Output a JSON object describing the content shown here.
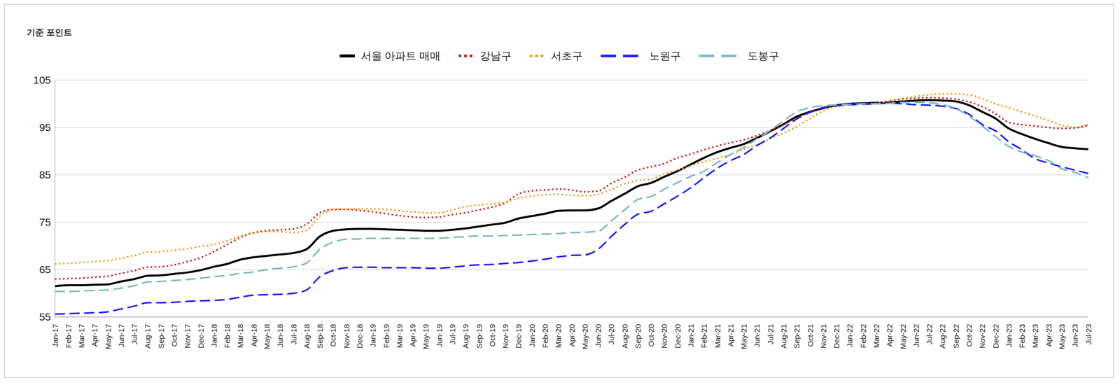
{
  "chart_data": {
    "type": "line",
    "title": "기준 포인트",
    "legend": "top",
    "grid": true,
    "ylim": [
      55,
      105
    ],
    "yticks": [
      55,
      65,
      75,
      85,
      95,
      105
    ],
    "categories": [
      "Jan-17",
      "Feb-17",
      "Mar-17",
      "Apr-17",
      "May-17",
      "Jun-17",
      "Jul-17",
      "Aug-17",
      "Sep-17",
      "Oct-17",
      "Nov-17",
      "Dec-17",
      "Jan-18",
      "Feb-18",
      "Mar-18",
      "Apr-18",
      "May-18",
      "Jun-18",
      "Jul-18",
      "Aug-18",
      "Sep-18",
      "Oct-18",
      "Nov-18",
      "Dec-18",
      "Jan-19",
      "Feb-19",
      "Mar-19",
      "Apr-19",
      "May-19",
      "Jun-19",
      "Jul-19",
      "Aug-19",
      "Sep-19",
      "Oct-19",
      "Nov-19",
      "Dec-19",
      "Jan-20",
      "Feb-20",
      "Mar-20",
      "Apr-20",
      "May-20",
      "Jun-20",
      "Jul-20",
      "Aug-20",
      "Sep-20",
      "Oct-20",
      "Nov-20",
      "Dec-20",
      "Jan-21",
      "Feb-21",
      "Mar-21",
      "Apr-21",
      "May-21",
      "Jun-21",
      "Jul-21",
      "Aug-21",
      "Sep-21",
      "Oct-21",
      "Nov-21",
      "Dec-21",
      "Jan-22",
      "Feb-22",
      "Mar-22",
      "Apr-22",
      "May-22",
      "Jun-22",
      "Jul-22",
      "Aug-22",
      "Sep-22",
      "Oct-22",
      "Nov-22",
      "Dec-22",
      "Jan-23",
      "Feb-23",
      "Mar-23",
      "Apr-23",
      "May-23",
      "Jun-23",
      "Jul-23"
    ],
    "series": [
      {
        "name": "서울 아파트 매매",
        "color": "#000000",
        "line_style": "solid",
        "values": [
          61.5,
          61.7,
          61.7,
          61.8,
          61.9,
          62.5,
          63.0,
          63.7,
          63.8,
          64.1,
          64.4,
          64.9,
          65.6,
          66.2,
          67.1,
          67.6,
          67.9,
          68.2,
          68.5,
          69.3,
          72.0,
          73.2,
          73.5,
          73.6,
          73.6,
          73.5,
          73.4,
          73.3,
          73.2,
          73.2,
          73.4,
          73.7,
          74.1,
          74.5,
          74.9,
          75.8,
          76.3,
          76.8,
          77.4,
          77.5,
          77.5,
          77.9,
          79.5,
          81.0,
          82.6,
          83.3,
          84.6,
          85.8,
          87.2,
          88.6,
          89.8,
          90.7,
          91.5,
          92.8,
          94.2,
          95.7,
          97.3,
          98.3,
          99.1,
          99.7,
          100.0,
          100.1,
          100.2,
          100.3,
          100.5,
          100.7,
          100.8,
          100.7,
          100.5,
          99.7,
          98.3,
          96.9,
          94.8,
          93.6,
          92.6,
          91.7,
          90.9,
          90.6,
          90.4
        ]
      },
      {
        "name": "강남구",
        "color": "#cc0000",
        "line_style": "dotted",
        "values": [
          63.0,
          63.1,
          63.2,
          63.4,
          63.6,
          64.2,
          64.8,
          65.5,
          65.6,
          66.0,
          66.7,
          67.5,
          68.8,
          70.3,
          71.8,
          72.8,
          73.2,
          73.4,
          73.6,
          74.6,
          77.0,
          77.7,
          77.7,
          77.5,
          77.2,
          76.8,
          76.4,
          76.1,
          76.0,
          76.1,
          76.6,
          77.0,
          77.6,
          78.2,
          79.1,
          81.0,
          81.6,
          81.8,
          82.0,
          81.8,
          81.4,
          81.6,
          83.2,
          84.5,
          86.0,
          86.7,
          87.4,
          88.6,
          89.4,
          90.3,
          91.1,
          91.8,
          92.4,
          93.3,
          94.4,
          95.6,
          97.0,
          98.2,
          99.2,
          99.7,
          99.9,
          100.0,
          100.1,
          100.6,
          101.0,
          101.2,
          101.3,
          101.2,
          101.0,
          100.4,
          99.4,
          97.9,
          96.1,
          95.6,
          95.3,
          95.0,
          94.8,
          94.9,
          95.5
        ]
      },
      {
        "name": "서초구",
        "color": "#e69b00",
        "line_style": "dotted",
        "values": [
          66.2,
          66.3,
          66.5,
          66.7,
          66.9,
          67.4,
          68.0,
          68.7,
          68.8,
          69.1,
          69.4,
          69.9,
          70.3,
          71.1,
          72.1,
          72.7,
          73.0,
          73.0,
          72.8,
          73.3,
          76.3,
          77.6,
          77.8,
          77.8,
          77.8,
          77.7,
          77.4,
          77.2,
          77.0,
          77.0,
          77.6,
          78.3,
          78.6,
          78.9,
          79.2,
          80.1,
          80.5,
          80.8,
          80.9,
          80.7,
          80.6,
          80.9,
          81.9,
          83.1,
          83.8,
          84.1,
          85.2,
          86.0,
          86.9,
          87.8,
          88.5,
          89.3,
          90.4,
          91.4,
          92.6,
          93.8,
          95.2,
          96.9,
          98.5,
          99.4,
          99.8,
          100.0,
          100.1,
          100.6,
          101.1,
          101.6,
          101.9,
          102.1,
          102.1,
          101.9,
          101.1,
          100.0,
          99.2,
          98.3,
          97.4,
          96.5,
          95.5,
          95.0,
          95.6
        ]
      },
      {
        "name": "노원구",
        "color": "#1a1aff",
        "line_style": "dashed",
        "values": [
          55.6,
          55.7,
          55.8,
          55.9,
          56.1,
          56.7,
          57.3,
          58.0,
          58.0,
          58.1,
          58.3,
          58.4,
          58.5,
          58.7,
          59.2,
          59.6,
          59.7,
          59.8,
          60.0,
          60.7,
          63.5,
          64.8,
          65.4,
          65.5,
          65.5,
          65.4,
          65.4,
          65.4,
          65.3,
          65.3,
          65.5,
          65.8,
          66.0,
          66.1,
          66.3,
          66.5,
          66.8,
          67.2,
          67.7,
          68.0,
          68.1,
          69.3,
          72.0,
          74.5,
          76.7,
          77.3,
          78.9,
          80.5,
          82.3,
          84.4,
          86.4,
          88.0,
          89.3,
          91.2,
          92.8,
          94.8,
          96.8,
          98.2,
          99.2,
          99.6,
          99.8,
          99.9,
          100.0,
          100.1,
          100.0,
          99.8,
          99.7,
          99.5,
          99.0,
          97.8,
          95.6,
          94.3,
          92.0,
          90.3,
          88.4,
          87.5,
          86.7,
          86.0,
          85.3
        ]
      },
      {
        "name": "도봉구",
        "color": "#7bb8c4",
        "line_style": "dashed",
        "values": [
          60.4,
          60.4,
          60.5,
          60.6,
          60.7,
          61.1,
          61.6,
          62.4,
          62.5,
          62.7,
          62.9,
          63.2,
          63.5,
          63.8,
          64.2,
          64.5,
          65.0,
          65.3,
          65.6,
          66.4,
          69.3,
          70.8,
          71.4,
          71.5,
          71.6,
          71.6,
          71.6,
          71.6,
          71.6,
          71.6,
          71.8,
          72.0,
          72.1,
          72.1,
          72.2,
          72.3,
          72.4,
          72.5,
          72.6,
          72.8,
          72.9,
          73.1,
          75.3,
          77.6,
          79.8,
          80.4,
          82.0,
          83.4,
          84.7,
          85.8,
          87.6,
          89.3,
          90.8,
          92.6,
          94.4,
          96.4,
          98.3,
          99.2,
          99.6,
          99.8,
          99.9,
          100.0,
          100.0,
          100.1,
          100.3,
          100.3,
          100.2,
          99.8,
          99.0,
          97.4,
          95.3,
          93.1,
          91.0,
          89.8,
          89.0,
          88.0,
          86.3,
          85.5,
          84.4
        ]
      }
    ]
  }
}
